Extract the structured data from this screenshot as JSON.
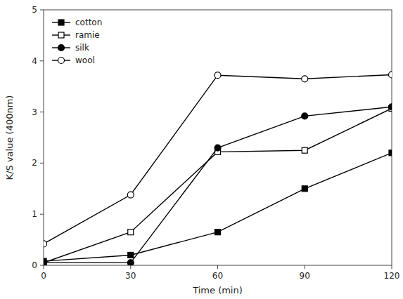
{
  "chart_data": {
    "type": "line",
    "xlabel": "Time (min)",
    "ylabel": "K/S value (400nm)",
    "x": [
      0,
      30,
      60,
      90,
      120
    ],
    "series": [
      {
        "name": "cotton",
        "color": "#000000",
        "marker": "filled-square",
        "values": [
          0.08,
          0.2,
          0.65,
          1.5,
          2.2
        ]
      },
      {
        "name": "ramie",
        "color": "#000000",
        "marker": "open-square",
        "values": [
          0.05,
          0.65,
          2.22,
          2.25,
          3.07
        ]
      },
      {
        "name": "silk",
        "color": "#000000",
        "marker": "filled-circle",
        "values": [
          0.05,
          0.05,
          2.3,
          2.92,
          3.1
        ]
      },
      {
        "name": "wool",
        "color": "#000000",
        "marker": "open-circle",
        "values": [
          0.42,
          1.38,
          3.72,
          3.65,
          3.73
        ]
      }
    ],
    "xlim": [
      0,
      120
    ],
    "ylim": [
      0,
      5
    ],
    "xticks": [
      0,
      30,
      60,
      90,
      120
    ],
    "yticks": [
      0,
      1,
      2,
      3,
      4,
      5
    ],
    "legend": "upper-left",
    "grid": false
  }
}
